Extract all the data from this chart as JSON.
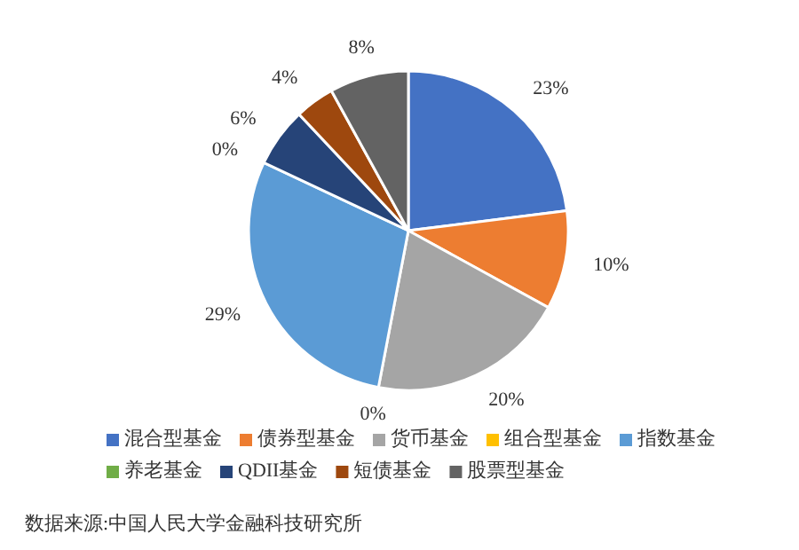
{
  "chart_data": {
    "type": "pie",
    "categories": [
      "混合型基金",
      "债券型基金",
      "货币基金",
      "组合型基金",
      "指数基金",
      "养老基金",
      "QDII基金",
      "短债基金",
      "股票型基金"
    ],
    "values": [
      23,
      10,
      20,
      0,
      29,
      0,
      6,
      4,
      8
    ],
    "colors": [
      "#4472c4",
      "#ed7d31",
      "#a5a5a5",
      "#ffc000",
      "#5b9bd5",
      "#70ad47",
      "#264478",
      "#9e480e",
      "#636363"
    ],
    "value_labels": [
      "23%",
      "10%",
      "20%",
      "0%",
      "29%",
      "0%",
      "6%",
      "4%",
      "8%"
    ],
    "legend": "bottom",
    "annotations": [
      "数据来源:中国人民大学金融科技研究所"
    ]
  }
}
